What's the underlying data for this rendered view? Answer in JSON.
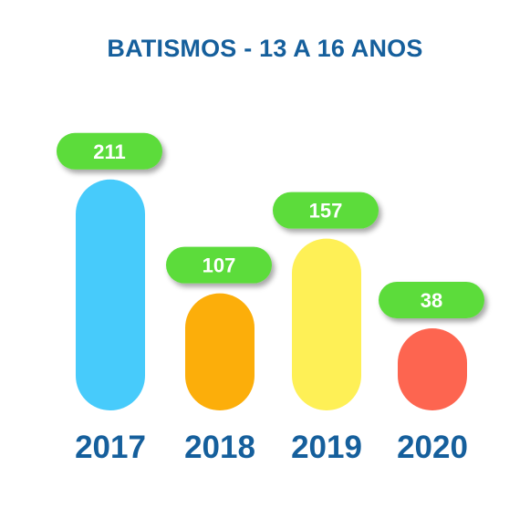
{
  "chart_data": {
    "type": "bar",
    "title": "BATISMOS - 13 A 16 ANOS",
    "categories": [
      "2017",
      "2018",
      "2019",
      "2020"
    ],
    "values": [
      211,
      107,
      157,
      38
    ],
    "value_labels": [
      "211",
      "107",
      "157",
      "38"
    ],
    "bar_colors": [
      "#47cbfb",
      "#fcae0a",
      "#fef056",
      "#fd6550"
    ],
    "label_badge_color": "#5bdc3a",
    "title_color": "#155f9c",
    "category_label_color": "#155f9c",
    "grid": false,
    "legend": "none"
  }
}
